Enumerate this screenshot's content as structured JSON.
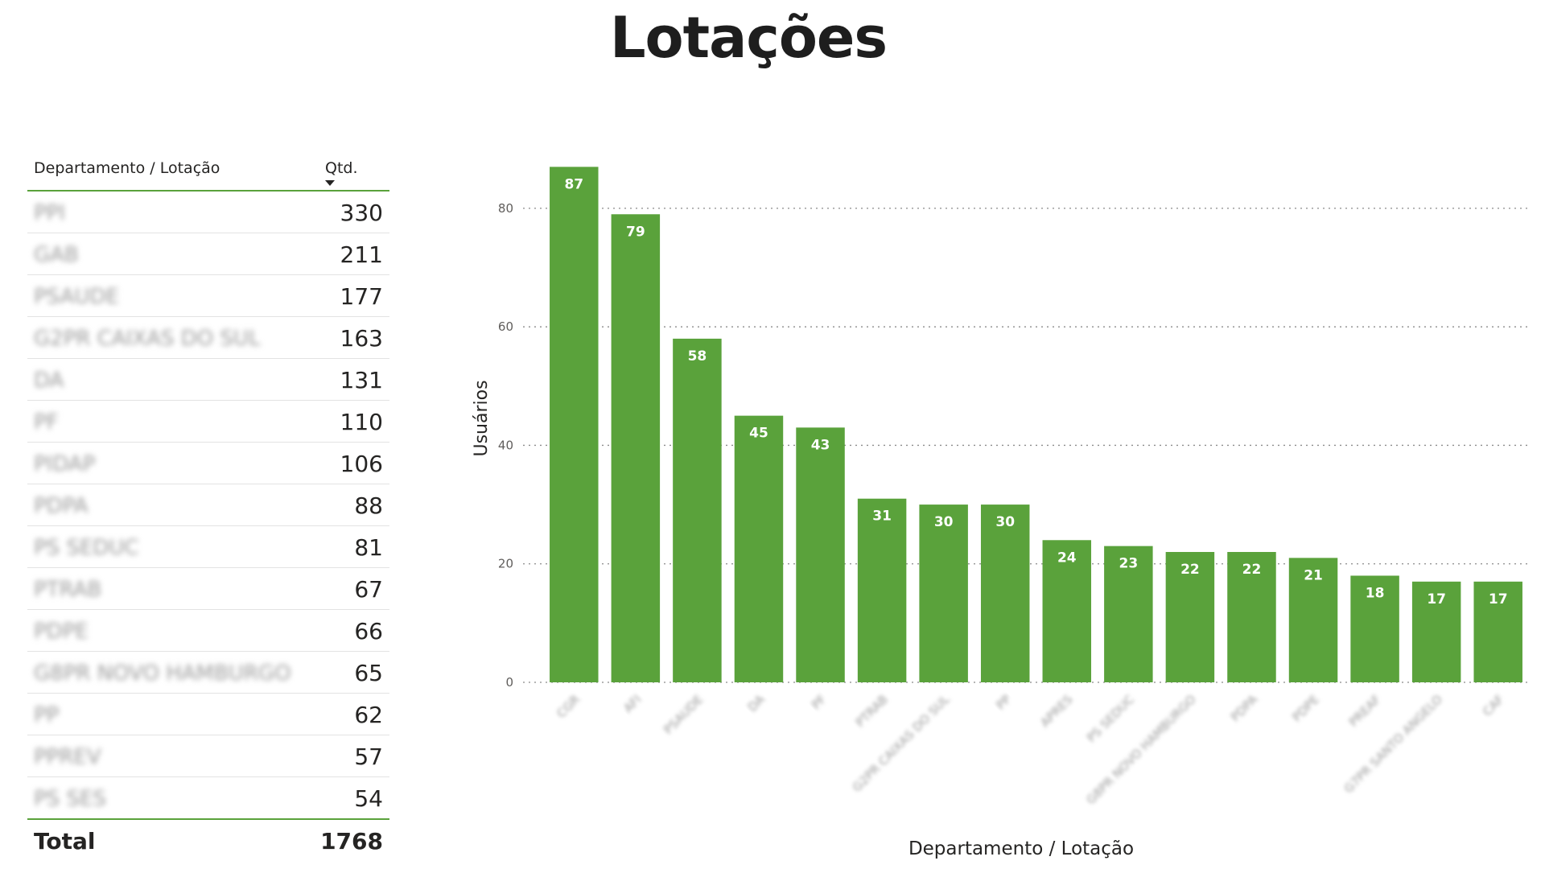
{
  "page": {
    "title": "Lotações"
  },
  "table": {
    "headers": {
      "department": "Departamento / Lotação",
      "quantity": "Qtd."
    },
    "sort_icon": "sort-descending-icon",
    "rows": [
      {
        "name": "PPI",
        "value": "330"
      },
      {
        "name": "GAB",
        "value": "211"
      },
      {
        "name": "PSAUDE",
        "value": "177"
      },
      {
        "name": "G2PR CAIXAS DO SUL",
        "value": "163"
      },
      {
        "name": "DA",
        "value": "131"
      },
      {
        "name": "PF",
        "value": "110"
      },
      {
        "name": "PIDAP",
        "value": "106"
      },
      {
        "name": "PDPA",
        "value": "88"
      },
      {
        "name": "PS SEDUC",
        "value": "81"
      },
      {
        "name": "PTRAB",
        "value": "67"
      },
      {
        "name": "PDPE",
        "value": "66"
      },
      {
        "name": "G8PR NOVO HAMBURGO",
        "value": "65"
      },
      {
        "name": "PP",
        "value": "62"
      },
      {
        "name": "PPREV",
        "value": "57"
      },
      {
        "name": "PS SES",
        "value": "54"
      }
    ],
    "total": {
      "label": "Total",
      "value": "1768"
    }
  },
  "chart_data": {
    "type": "bar",
    "title": "",
    "xlabel": "Departamento / Lotação",
    "ylabel": "Usuários",
    "ylim": [
      0,
      88
    ],
    "yticks": [
      0,
      20,
      40,
      60,
      80
    ],
    "grid": true,
    "bar_color": "#5aa23b",
    "categories": [
      "CGR",
      "AFI",
      "PSAUDE",
      "DA",
      "PF",
      "PTRAB",
      "G2PR CAIXAS DO SUL",
      "PP",
      "APRES",
      "PS SEDUC",
      "G8PR NOVO HAMBURGO",
      "PDPA",
      "PDPE",
      "PREAF",
      "G7PR SANTO ANGELO",
      "CAF"
    ],
    "values": [
      87,
      79,
      58,
      45,
      43,
      31,
      30,
      30,
      24,
      23,
      22,
      22,
      21,
      18,
      17,
      17
    ]
  }
}
